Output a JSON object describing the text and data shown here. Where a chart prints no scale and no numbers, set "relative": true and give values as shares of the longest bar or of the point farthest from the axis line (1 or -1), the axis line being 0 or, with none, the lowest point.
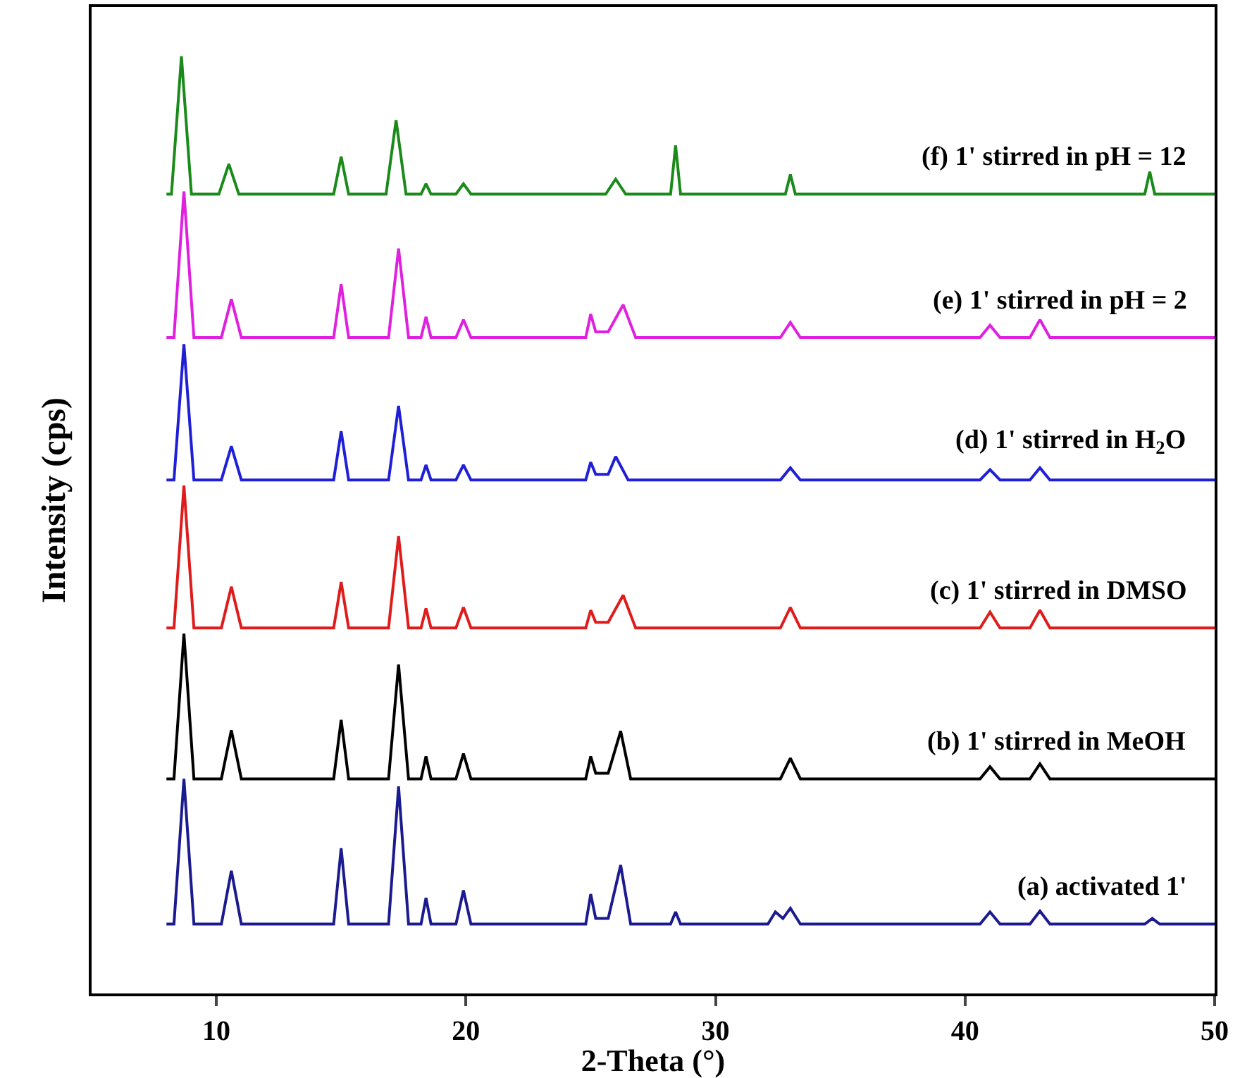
{
  "chart_data": {
    "type": "line",
    "relative": true,
    "xlabel": "2-Theta (°)",
    "ylabel": "Intensity (cps)",
    "xlim": [
      5,
      50
    ],
    "xticks": [
      10,
      20,
      30,
      40,
      50
    ],
    "grid": false,
    "legend": false,
    "marker": "none",
    "line_style": "solid",
    "series": [
      {
        "name": "(a) activated 1'",
        "color": "#1b1b8f",
        "x": [
          8,
          8.3,
          8.7,
          9.1,
          10.2,
          10.6,
          11.0,
          14.7,
          15.0,
          15.3,
          16.9,
          17.3,
          17.7,
          18.2,
          18.4,
          18.6,
          19.6,
          19.9,
          20.2,
          24.8,
          25.0,
          25.2,
          25.7,
          26.2,
          26.6,
          28.2,
          28.4,
          28.6,
          32.1,
          32.4,
          32.7,
          33.0,
          33.4,
          40.6,
          41.0,
          41.4,
          42.6,
          43.0,
          43.4,
          47.2,
          47.5,
          47.8,
          50
        ],
        "values": [
          0.074,
          0.074,
          0.229,
          0.074,
          0.074,
          0.131,
          0.074,
          0.074,
          0.155,
          0.074,
          0.074,
          0.221,
          0.074,
          0.074,
          0.102,
          0.074,
          0.074,
          0.11,
          0.074,
          0.074,
          0.106,
          0.08,
          0.08,
          0.137,
          0.074,
          0.074,
          0.087,
          0.074,
          0.074,
          0.087,
          0.08,
          0.091,
          0.074,
          0.074,
          0.087,
          0.074,
          0.074,
          0.088,
          0.074,
          0.074,
          0.08,
          0.074,
          0.074
        ]
      },
      {
        "name": "(b) 1' stirred in MeOH",
        "color": "#000000",
        "x": [
          8,
          8.3,
          8.7,
          9.1,
          10.2,
          10.6,
          11.0,
          14.7,
          15.0,
          15.3,
          16.9,
          17.3,
          17.7,
          18.2,
          18.4,
          18.6,
          19.6,
          19.9,
          20.2,
          24.8,
          25.0,
          25.2,
          25.7,
          26.2,
          26.6,
          32.6,
          33.0,
          33.4,
          40.6,
          41.0,
          41.4,
          42.6,
          43.0,
          43.4,
          50
        ],
        "values": [
          0.229,
          0.229,
          0.384,
          0.229,
          0.229,
          0.281,
          0.229,
          0.229,
          0.292,
          0.229,
          0.229,
          0.351,
          0.229,
          0.229,
          0.253,
          0.229,
          0.229,
          0.256,
          0.229,
          0.229,
          0.253,
          0.235,
          0.235,
          0.28,
          0.229,
          0.229,
          0.251,
          0.229,
          0.229,
          0.242,
          0.229,
          0.229,
          0.245,
          0.229,
          0.229
        ]
      },
      {
        "name": "(c) 1' stirred in DMSO",
        "color": "#e01b1b",
        "x": [
          8,
          8.3,
          8.7,
          9.1,
          10.2,
          10.6,
          11.0,
          14.7,
          15.0,
          15.3,
          16.9,
          17.3,
          17.7,
          18.2,
          18.4,
          18.6,
          19.6,
          19.9,
          20.2,
          24.8,
          25.0,
          25.2,
          25.7,
          26.3,
          26.8,
          32.6,
          33.0,
          33.4,
          40.6,
          41.0,
          41.4,
          42.6,
          43.0,
          43.4,
          50
        ],
        "values": [
          0.39,
          0.39,
          0.542,
          0.39,
          0.39,
          0.434,
          0.39,
          0.39,
          0.439,
          0.39,
          0.39,
          0.488,
          0.39,
          0.39,
          0.411,
          0.39,
          0.39,
          0.412,
          0.39,
          0.39,
          0.409,
          0.396,
          0.396,
          0.425,
          0.39,
          0.39,
          0.412,
          0.39,
          0.39,
          0.407,
          0.39,
          0.39,
          0.409,
          0.39,
          0.39
        ]
      },
      {
        "name": "(d) 1' stirred in H$_{2}$O",
        "color": "#1f1fd8",
        "x": [
          8,
          8.3,
          8.7,
          9.1,
          10.2,
          10.6,
          11.0,
          14.7,
          15.0,
          15.3,
          16.9,
          17.3,
          17.7,
          18.2,
          18.4,
          18.6,
          19.6,
          19.9,
          20.2,
          24.8,
          25.0,
          25.2,
          25.7,
          26.0,
          26.5,
          32.6,
          33.0,
          33.4,
          40.6,
          41.0,
          41.4,
          42.6,
          43.0,
          43.4,
          50
        ],
        "values": [
          0.548,
          0.548,
          0.693,
          0.548,
          0.548,
          0.584,
          0.548,
          0.548,
          0.6,
          0.548,
          0.548,
          0.627,
          0.548,
          0.548,
          0.564,
          0.548,
          0.548,
          0.564,
          0.548,
          0.548,
          0.567,
          0.554,
          0.554,
          0.573,
          0.548,
          0.548,
          0.561,
          0.548,
          0.548,
          0.559,
          0.548,
          0.548,
          0.561,
          0.548,
          0.548
        ]
      },
      {
        "name": "(e) 1' stirred in pH = 2",
        "color": "#e020e0",
        "x": [
          8,
          8.3,
          8.7,
          9.1,
          10.2,
          10.6,
          11.0,
          14.7,
          15.0,
          15.3,
          16.9,
          17.3,
          17.7,
          18.2,
          18.4,
          18.6,
          19.6,
          19.9,
          20.2,
          24.8,
          25.0,
          25.2,
          25.7,
          26.3,
          26.8,
          32.6,
          33.0,
          33.4,
          40.6,
          41.0,
          41.4,
          42.6,
          43.0,
          43.4,
          50
        ],
        "values": [
          0.7,
          0.7,
          0.856,
          0.7,
          0.7,
          0.741,
          0.7,
          0.7,
          0.757,
          0.7,
          0.7,
          0.795,
          0.7,
          0.7,
          0.722,
          0.7,
          0.7,
          0.719,
          0.7,
          0.7,
          0.725,
          0.706,
          0.706,
          0.735,
          0.7,
          0.7,
          0.716,
          0.7,
          0.7,
          0.713,
          0.7,
          0.7,
          0.719,
          0.7,
          0.7
        ]
      },
      {
        "name": "(f) 1' stirred in pH = 12",
        "color": "#1a8a1a",
        "x": [
          8,
          8.2,
          8.6,
          9.0,
          10.1,
          10.5,
          10.9,
          14.7,
          15.0,
          15.3,
          16.8,
          17.2,
          17.6,
          18.2,
          18.4,
          18.6,
          19.6,
          19.9,
          20.2,
          25.6,
          26.0,
          26.4,
          28.2,
          28.4,
          28.6,
          32.8,
          33.0,
          33.2,
          47.2,
          47.4,
          47.6,
          50
        ],
        "values": [
          0.853,
          0.853,
          1.0,
          0.853,
          0.853,
          0.885,
          0.853,
          0.853,
          0.893,
          0.853,
          0.853,
          0.932,
          0.853,
          0.853,
          0.864,
          0.853,
          0.853,
          0.864,
          0.853,
          0.853,
          0.869,
          0.853,
          0.853,
          0.905,
          0.853,
          0.853,
          0.874,
          0.853,
          0.853,
          0.877,
          0.853,
          0.853
        ]
      }
    ]
  }
}
